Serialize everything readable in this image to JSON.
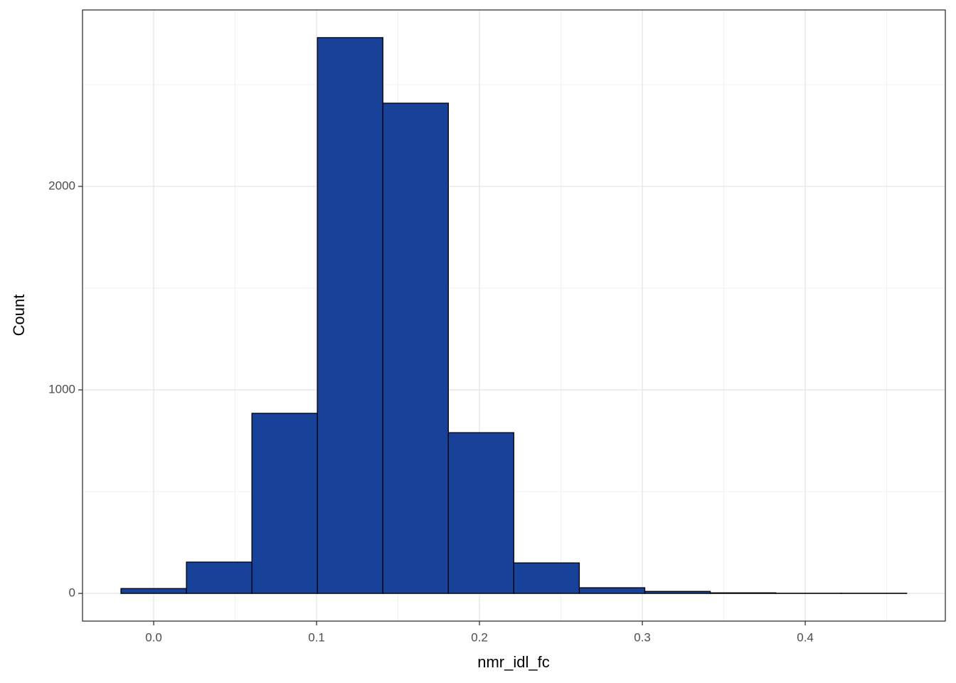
{
  "chart_data": {
    "type": "histogram",
    "x_label": "nmr_idl_fc",
    "y_label": "Count",
    "bins": [
      -0.0201,
      0.0201,
      0.0603,
      0.1005,
      0.1407,
      0.1809,
      0.2211,
      0.2613,
      0.3015,
      0.3417,
      0.3819,
      0.4221,
      0.4623
    ],
    "values": [
      24,
      154,
      885,
      2731,
      2409,
      790,
      150,
      28,
      10,
      3,
      1,
      1
    ],
    "color": "#18429a",
    "edge_color": "#000000",
    "xlim": [
      -0.0437,
      0.486
    ],
    "ylim": [
      -136,
      2867
    ],
    "xticks": [
      {
        "value": 0,
        "label": "0.0"
      },
      0.1,
      0.2,
      0.3,
      0.4
    ],
    "yticks": [
      0,
      1000,
      2000
    ],
    "x_minor_grid": [
      0.05,
      0.15,
      0.25,
      0.35,
      0.45
    ],
    "y_minor_grid": [
      500,
      1500,
      2500
    ],
    "grid": true
  }
}
